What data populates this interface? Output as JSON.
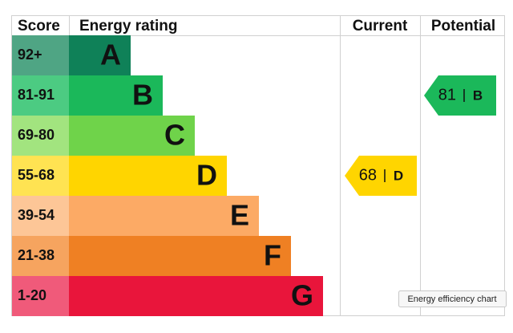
{
  "header": {
    "score": "Score",
    "rating": "Energy rating",
    "current": "Current",
    "potential": "Potential"
  },
  "bands": [
    {
      "score": "92+",
      "letter": "A",
      "color": "#0f8158",
      "light": "#4fa584"
    },
    {
      "score": "81-91",
      "letter": "B",
      "color": "#1bb85a",
      "light": "#4ccb82"
    },
    {
      "score": "69-80",
      "letter": "C",
      "color": "#6fd34a",
      "light": "#a2e47f"
    },
    {
      "score": "55-68",
      "letter": "D",
      "color": "#ffd500",
      "light": "#ffe352"
    },
    {
      "score": "39-54",
      "letter": "E",
      "color": "#fcaa65",
      "light": "#fdc697"
    },
    {
      "score": "21-38",
      "letter": "F",
      "color": "#ef8023",
      "light": "#f6a45f"
    },
    {
      "score": "1-20",
      "letter": "G",
      "color": "#e9153b",
      "light": "#f05a7a"
    }
  ],
  "current": {
    "value": 68,
    "rating": "D"
  },
  "potential": {
    "value": 81,
    "rating": "B"
  },
  "tooltip": "Energy efficiency chart"
}
